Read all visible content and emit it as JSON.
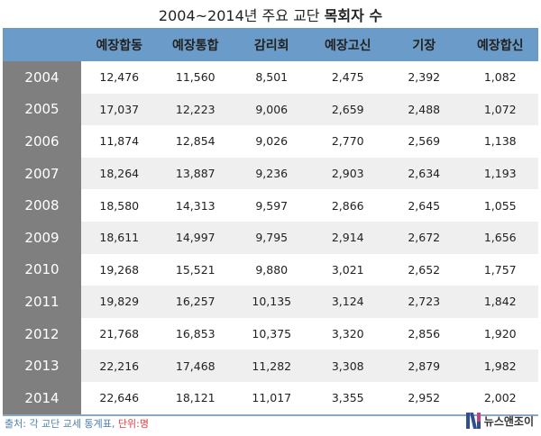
{
  "title_plain": "2004~2014년 주요 교단",
  "title_bold": "목회자 수",
  "chart_data": {
    "type": "table",
    "title": "2004~2014년 주요 교단 목회자 수",
    "columns": [
      "예장합동",
      "예장통합",
      "감리회",
      "예장고신",
      "기장",
      "예장합신"
    ],
    "rows": [
      {
        "year": "2004",
        "values": [
          "12,476",
          "11,560",
          "8,501",
          "2,475",
          "2,392",
          "1,082"
        ]
      },
      {
        "year": "2005",
        "values": [
          "17,037",
          "12,223",
          "9,006",
          "2,659",
          "2,488",
          "1,072"
        ]
      },
      {
        "year": "2006",
        "values": [
          "11,874",
          "12,854",
          "9,026",
          "2,770",
          "2,569",
          "1,138"
        ]
      },
      {
        "year": "2007",
        "values": [
          "18,264",
          "13,887",
          "9,236",
          "2,903",
          "2,634",
          "1,193"
        ]
      },
      {
        "year": "2008",
        "values": [
          "18,580",
          "14,313",
          "9,597",
          "2,866",
          "2,645",
          "1,055"
        ]
      },
      {
        "year": "2009",
        "values": [
          "18,611",
          "14,997",
          "9,795",
          "2,914",
          "2,672",
          "1,656"
        ]
      },
      {
        "year": "2010",
        "values": [
          "19,268",
          "15,521",
          "9,880",
          "3,021",
          "2,652",
          "1,757"
        ]
      },
      {
        "year": "2011",
        "values": [
          "19,829",
          "16,257",
          "10,135",
          "3,124",
          "2,723",
          "1,842"
        ]
      },
      {
        "year": "2012",
        "values": [
          "21,768",
          "16,853",
          "10,375",
          "3,320",
          "2,856",
          "1,920"
        ]
      },
      {
        "year": "2013",
        "values": [
          "22,216",
          "17,468",
          "11,282",
          "3,308",
          "2,879",
          "1,982"
        ]
      },
      {
        "year": "2014",
        "values": [
          "22,646",
          "18,121",
          "11,017",
          "3,355",
          "2,952",
          "2,002"
        ]
      }
    ]
  },
  "footer": {
    "source": "출처: 각 교단 교세 통계표,",
    "unit": "단위:명",
    "logo_text": "뉴스앤조이"
  },
  "colors": {
    "header": "#6b9bc8",
    "year_column": "#7f7f7f",
    "alt_row": "#efefef",
    "source": "#4f7fb0",
    "unit": "#e0393e"
  }
}
